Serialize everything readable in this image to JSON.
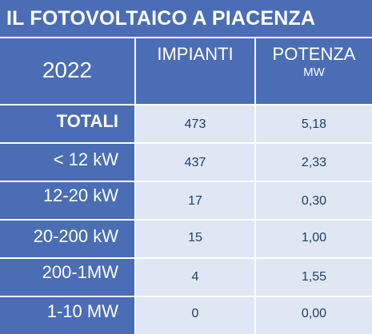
{
  "title": "IL FOTOVOLTAICO A PIACENZA",
  "header": {
    "year": "2022",
    "col1": "IMPIANTI",
    "col2": "POTENZA",
    "col2_unit": "MW"
  },
  "rows": [
    {
      "label": "TOTALI",
      "impianti": "473",
      "potenza": "5,18"
    },
    {
      "label": "< 12 kW",
      "impianti": "437",
      "potenza": "2,33"
    },
    {
      "label": "12-20 kW",
      "impianti": "17",
      "potenza": "0,30"
    },
    {
      "label": "20-200 kW",
      "impianti": "15",
      "potenza": "1,00"
    },
    {
      "label": "200-1MW",
      "impianti": "4",
      "potenza": "1,55"
    },
    {
      "label": "1-10 MW",
      "impianti": "0",
      "potenza": "0,00"
    }
  ]
}
